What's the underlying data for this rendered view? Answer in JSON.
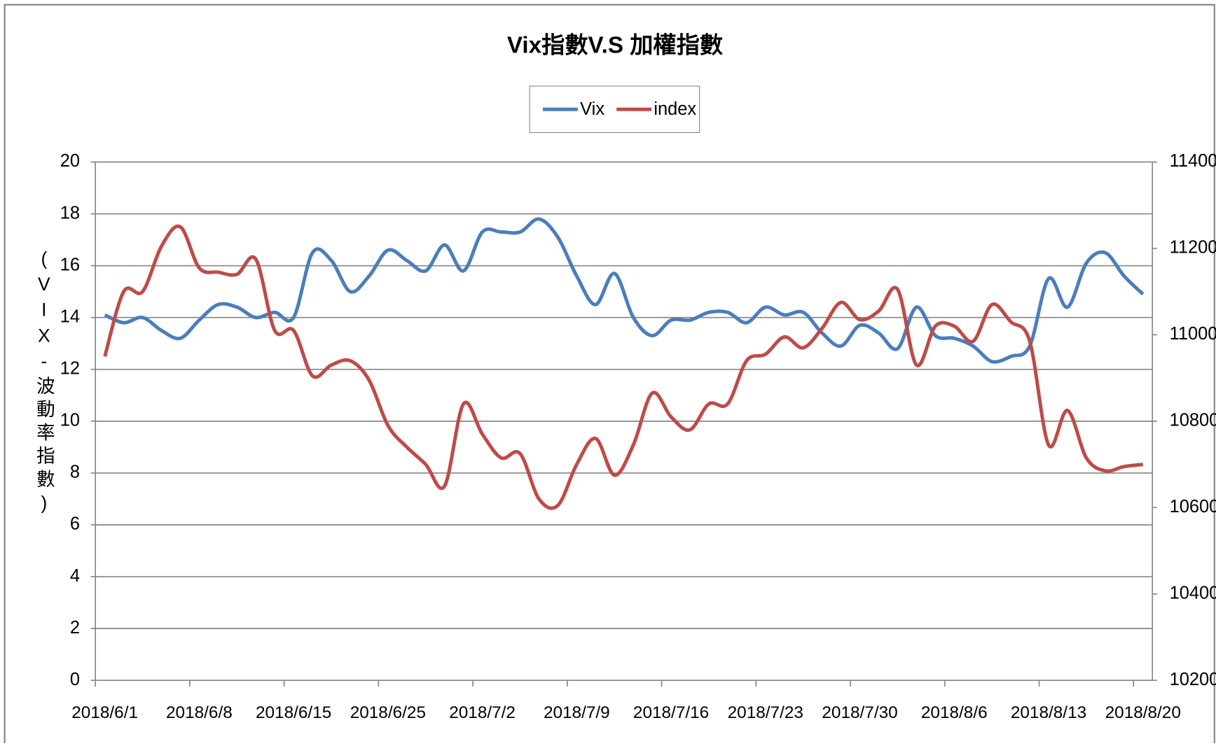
{
  "chart_data": {
    "type": "line",
    "title": "Vix指數V.S 加權指數",
    "y_label": "(VIX-波動率指數)",
    "categories": [
      "2018/6/1",
      null,
      null,
      null,
      null,
      "2018/6/8",
      null,
      null,
      null,
      null,
      "2018/6/15",
      null,
      null,
      null,
      null,
      "2018/6/25",
      null,
      null,
      null,
      null,
      "2018/7/2",
      null,
      null,
      null,
      null,
      "2018/7/9",
      null,
      null,
      null,
      null,
      "2018/7/16",
      null,
      null,
      null,
      null,
      "2018/7/23",
      null,
      null,
      null,
      null,
      "2018/7/30",
      null,
      null,
      null,
      null,
      "2018/8/6",
      null,
      null,
      null,
      null,
      "2018/8/13",
      null,
      null,
      null,
      null,
      "2018/8/20"
    ],
    "series": [
      {
        "name": "Vix",
        "color": "#4a7ebb",
        "values": [
          14.1,
          13.8,
          14.0,
          13.5,
          13.2,
          13.9,
          14.5,
          14.4,
          14.0,
          14.2,
          14.0,
          16.5,
          16.2,
          15.0,
          15.6,
          16.6,
          16.2,
          15.8,
          16.8,
          15.8,
          17.3,
          17.3,
          17.3,
          17.8,
          17.1,
          15.6,
          14.5,
          15.7,
          14.0,
          13.3,
          13.9,
          13.9,
          14.2,
          14.2,
          13.8,
          14.4,
          14.1,
          14.2,
          13.4,
          12.9,
          13.7,
          13.4,
          12.8,
          14.4,
          13.3,
          13.2,
          12.9,
          12.3,
          12.5,
          12.9,
          15.5,
          14.4,
          16.1,
          16.5,
          15.6,
          14.9
        ]
      },
      {
        "name": "index",
        "color": "#be4b48",
        "axis": "y2",
        "values": [
          10950,
          11100,
          11100,
          11205,
          11250,
          11155,
          11145,
          11140,
          11175,
          11010,
          11010,
          10905,
          10930,
          10940,
          10895,
          10790,
          10740,
          10700,
          10650,
          10840,
          10770,
          10715,
          10725,
          10620,
          10605,
          10700,
          10760,
          10675,
          10745,
          10865,
          10810,
          10780,
          10840,
          10840,
          10940,
          10955,
          10995,
          10970,
          11015,
          11075,
          11035,
          11055,
          11105,
          10930,
          11020,
          11020,
          10985,
          11070,
          11030,
          10985,
          10745,
          10825,
          10715,
          10685,
          10695,
          10700
        ]
      }
    ],
    "ylim": [
      0,
      20
    ],
    "yticks": [
      0,
      2,
      4,
      6,
      8,
      10,
      12,
      14,
      16,
      18,
      20
    ],
    "y2lim": [
      10200,
      11400
    ],
    "y2ticks": [
      10200,
      10400,
      10600,
      10800,
      11000,
      11200,
      11400
    ],
    "grid": true,
    "legend": "top"
  }
}
